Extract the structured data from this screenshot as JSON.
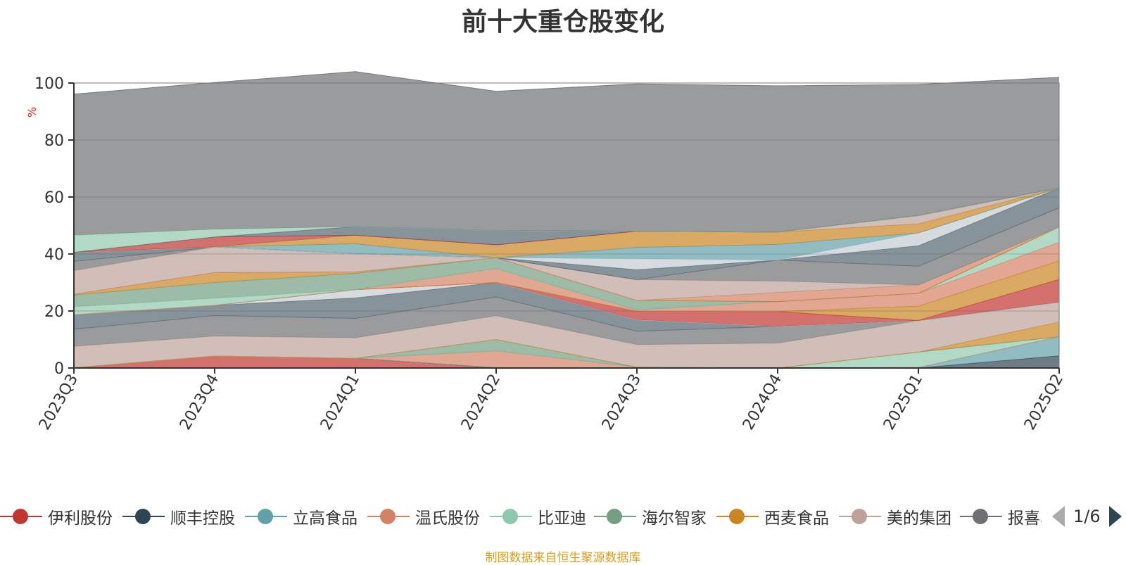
{
  "title": "前十大重仓股变化",
  "unit_label": "%",
  "source_note": "制图数据来自恒生聚源数据库",
  "legend_pager": "1/6",
  "chart_data": {
    "type": "area",
    "stacked": true,
    "categories": [
      "2023Q3",
      "2023Q4",
      "2024Q1",
      "2024Q2",
      "2024Q3",
      "2024Q4",
      "2025Q1",
      "2025Q2"
    ],
    "ylim": [
      0,
      100
    ],
    "yticks": [
      0,
      20,
      40,
      60,
      80,
      100
    ],
    "grid": true,
    "legend_position": "bottom",
    "series": [
      {
        "name": "伊利股份",
        "color": "#c23531",
        "values": [
          0.1,
          4.2,
          3.4,
          0.1,
          0,
          0,
          0,
          0
        ]
      },
      {
        "name": "顺丰控股",
        "color": "#2f4554",
        "values": [
          0,
          0,
          0,
          0,
          0,
          0,
          0,
          4.3
        ]
      },
      {
        "name": "立高食品",
        "color": "#61a0a8",
        "values": [
          0,
          0,
          0,
          0,
          0,
          0,
          0.2,
          6.7
        ]
      },
      {
        "name": "温氏股份",
        "color": "#d48265",
        "values": [
          0,
          0,
          0,
          5.9,
          0.3,
          0,
          0,
          0
        ]
      },
      {
        "name": "比亚迪",
        "color": "#91c7ae",
        "values": [
          0,
          0,
          0,
          0,
          0,
          0,
          5.4,
          0
        ]
      },
      {
        "name": "海尔智家",
        "color": "#749f83",
        "values": [
          0,
          0,
          0,
          4.0,
          0,
          0,
          0,
          0
        ]
      },
      {
        "name": "西麦食品",
        "color": "#ca8622",
        "values": [
          0,
          0,
          0,
          0,
          0,
          0,
          0,
          5.1
        ]
      },
      {
        "name": "美的集团",
        "color": "#bda29a",
        "values": [
          7.5,
          7.0,
          7.2,
          8.3,
          7.9,
          8.7,
          11.0,
          7.0
        ]
      },
      {
        "name": "报喜鸟",
        "color": "#6e7074",
        "values": [
          6.0,
          7.2,
          6.8,
          6.6,
          4.7,
          5.9,
          0,
          0
        ]
      },
      {
        "name": "",
        "color": "#546570",
        "values": [
          5.1,
          3.6,
          7.2,
          5.1,
          4.0,
          0,
          0,
          0
        ]
      },
      {
        "name": "",
        "color": "#c4ccd3",
        "values": [
          0,
          0,
          2.9,
          0,
          0,
          0,
          0,
          0
        ]
      },
      {
        "name": "",
        "color": "#c23531",
        "values": [
          0,
          0,
          0,
          0,
          3.0,
          5.2,
          0.1,
          8.0
        ]
      },
      {
        "name": "",
        "color": "#ca8622",
        "values": [
          0,
          0,
          0,
          0,
          0,
          0,
          5.0,
          6.5
        ]
      },
      {
        "name": "",
        "color": "#d48265",
        "values": [
          0,
          0,
          0,
          4.9,
          0.5,
          3.5,
          4.5,
          6.5
        ]
      },
      {
        "name": "",
        "color": "#91c7ae",
        "values": [
          2.8,
          2.5,
          0,
          0,
          0,
          0,
          0,
          5.4
        ]
      },
      {
        "name": "",
        "color": "#749f83",
        "values": [
          4.1,
          5.5,
          5.7,
          3.8,
          3.3,
          0,
          0,
          0
        ]
      },
      {
        "name": "",
        "color": "#ca8622",
        "values": [
          0.3,
          3.5,
          0.5,
          0,
          0,
          0,
          0,
          0
        ]
      },
      {
        "name": "",
        "color": "#d48265",
        "values": [
          0,
          0,
          0,
          0,
          0,
          3.2,
          2.9,
          0
        ]
      },
      {
        "name": "",
        "color": "#bda29a",
        "values": [
          8.3,
          9.0,
          6.4,
          0,
          7.3,
          4.0,
          0,
          0
        ]
      },
      {
        "name": "",
        "color": "#6e7074",
        "values": [
          3.2,
          0,
          0,
          0,
          0,
          7.4,
          6.6,
          6.7
        ]
      },
      {
        "name": "",
        "color": "#546570",
        "values": [
          3.2,
          0,
          0,
          0,
          3.5,
          0,
          7.2,
          7.0
        ]
      },
      {
        "name": "",
        "color": "#c4ccd3",
        "values": [
          0,
          0,
          0,
          0,
          3.8,
          0,
          4.5,
          0
        ]
      },
      {
        "name": "",
        "color": "#61a0a8",
        "values": [
          0,
          0,
          3.5,
          0,
          4.0,
          5.5,
          0,
          0
        ]
      },
      {
        "name": "",
        "color": "#ca8622",
        "values": [
          0,
          0,
          3.0,
          4.5,
          5.7,
          4.3,
          3.2,
          0
        ]
      },
      {
        "name": "",
        "color": "#bda29a",
        "values": [
          0,
          0,
          0,
          0,
          0,
          0,
          2.9,
          0
        ]
      },
      {
        "name": "",
        "color": "#c23531",
        "values": [
          0,
          3.5,
          0,
          0,
          0,
          0,
          0,
          0
        ]
      },
      {
        "name": "",
        "color": "#546570",
        "values": [
          0,
          0,
          3.0,
          5.0,
          0,
          0,
          0,
          0
        ]
      },
      {
        "name": "",
        "color": "#91c7ae",
        "values": [
          6.0,
          2.7,
          0,
          0,
          0,
          0,
          0,
          0
        ]
      },
      {
        "name": "",
        "color": "#6e7074",
        "values": [
          49.5,
          51.5,
          54.4,
          48.9,
          51.7,
          51.3,
          46.0,
          38.8
        ]
      }
    ]
  }
}
